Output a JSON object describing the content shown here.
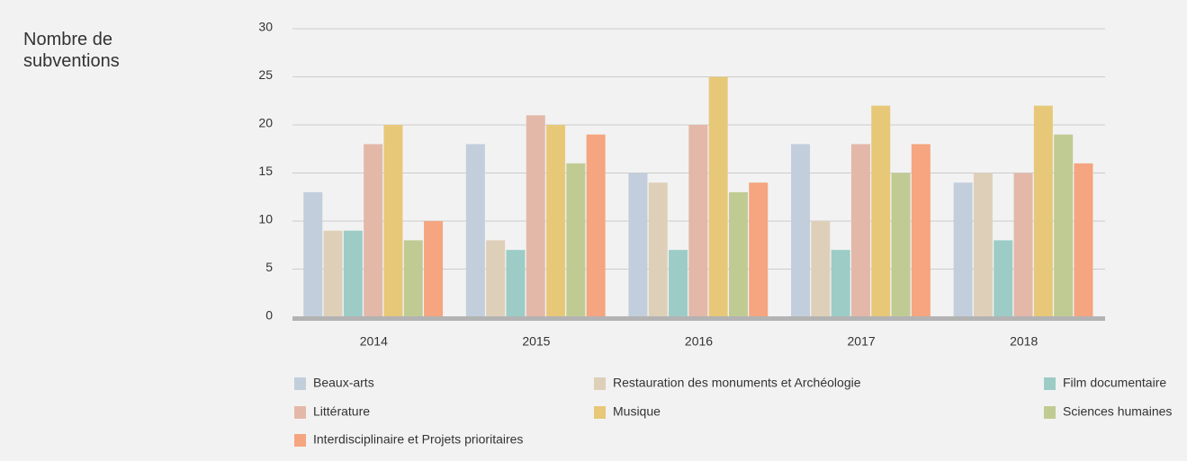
{
  "chart_data": {
    "type": "bar",
    "y_label": "Nombre de subventions",
    "categories": [
      "2014",
      "2015",
      "2016",
      "2017",
      "2018"
    ],
    "series": [
      {
        "name": "Beaux-arts",
        "color": "#c2cedb",
        "values": [
          13,
          18,
          15,
          18,
          14
        ]
      },
      {
        "name": "Restauration des monuments et Archéologie",
        "color": "#decfb8",
        "values": [
          9,
          8,
          14,
          10,
          15
        ]
      },
      {
        "name": "Film documentaire",
        "color": "#9dccc7",
        "values": [
          9,
          7,
          7,
          7,
          8
        ]
      },
      {
        "name": "Littérature",
        "color": "#e3b8a9",
        "values": [
          18,
          21,
          20,
          18,
          15
        ]
      },
      {
        "name": "Musique",
        "color": "#e7c878",
        "values": [
          20,
          20,
          25,
          22,
          22
        ]
      },
      {
        "name": "Sciences humaines",
        "color": "#c0cb93",
        "values": [
          8,
          16,
          13,
          15,
          19
        ]
      },
      {
        "name": "Interdisciplinaire et Projets prioritaires",
        "color": "#f5a57f",
        "values": [
          10,
          19,
          14,
          18,
          16
        ]
      }
    ],
    "ylim": [
      0,
      30
    ],
    "yticks": [
      0,
      5,
      10,
      15,
      20,
      25,
      30
    ],
    "grid": true
  }
}
